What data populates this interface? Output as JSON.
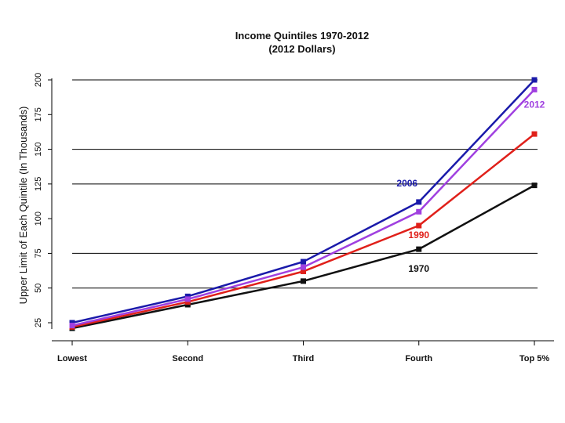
{
  "chart_data": {
    "type": "line",
    "title": "Income Quintiles 1970-2012",
    "subtitle": "(2012 Dollars)",
    "ylabel": "Upper Limit of Each Quintile (In Thousands)",
    "xlabel": "",
    "categories": [
      "Lowest",
      "Second",
      "Third",
      "Fourth",
      "Top 5%"
    ],
    "ylim": [
      25,
      200
    ],
    "yticks": [
      25,
      50,
      75,
      100,
      125,
      150,
      175,
      200
    ],
    "gridlines": [
      50,
      75,
      125,
      150,
      200
    ],
    "series": [
      {
        "name": "1970",
        "color": "#111111",
        "values": [
          21,
          38,
          55,
          78,
          124
        ]
      },
      {
        "name": "1990",
        "color": "#e0201a",
        "values": [
          22,
          40,
          62,
          95,
          161
        ]
      },
      {
        "name": "2006",
        "color": "#1a1aaa",
        "values": [
          25,
          44,
          69,
          112,
          200
        ]
      },
      {
        "name": "2012",
        "color": "#a040e0",
        "values": [
          23,
          42,
          65,
          105,
          193
        ]
      }
    ]
  }
}
